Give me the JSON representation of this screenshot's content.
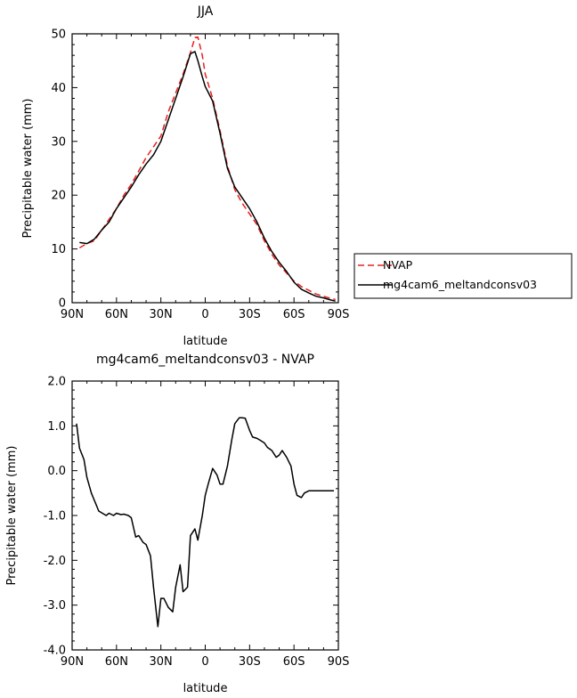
{
  "chart_data": [
    {
      "type": "line",
      "title": "JJA",
      "xlabel": "latitude",
      "ylabel": "Precipitable water (mm)",
      "xlim": [
        90,
        -90
      ],
      "ylim": [
        0,
        50
      ],
      "x_ticks": [
        90,
        60,
        30,
        0,
        -30,
        -60,
        -90
      ],
      "x_tick_labels": [
        "90N",
        "60N",
        "30N",
        "0",
        "30S",
        "60S",
        "90S"
      ],
      "y_ticks": [
        0,
        10,
        20,
        30,
        40,
        50
      ],
      "y_tick_labels": [
        "0",
        "10",
        "20",
        "30",
        "40",
        "50"
      ],
      "legend_placement": "right",
      "series": [
        {
          "name": "NVAP",
          "color": "#e8201e",
          "dash": "dashed",
          "x": [
            85,
            80,
            75,
            70,
            65,
            60,
            55,
            50,
            45,
            40,
            35,
            30,
            25,
            20,
            15,
            10,
            7,
            5,
            2,
            0,
            -5,
            -10,
            -15,
            -20,
            -25,
            -30,
            -35,
            -40,
            -45,
            -50,
            -55,
            -60,
            -65,
            -70,
            -75,
            -80,
            -85,
            -88
          ],
          "y": [
            10.2,
            11.0,
            11.5,
            13.5,
            15.5,
            17.5,
            20.0,
            22.0,
            24.5,
            27.0,
            29.0,
            31.0,
            35.5,
            39.0,
            42.5,
            46.5,
            49.3,
            49.4,
            46.0,
            42.5,
            38.0,
            32.0,
            25.5,
            21.0,
            18.5,
            16.5,
            14.5,
            11.5,
            9.0,
            7.0,
            5.5,
            4.0,
            3.0,
            2.3,
            1.6,
            1.2,
            0.8,
            0.6
          ]
        },
        {
          "name": "mg4cam6_meltandconsv03",
          "color": "#000000",
          "dash": "solid",
          "x": [
            85,
            80,
            75,
            70,
            65,
            60,
            55,
            50,
            45,
            40,
            35,
            30,
            25,
            20,
            15,
            10,
            7,
            5,
            2,
            0,
            -5,
            -10,
            -15,
            -20,
            -25,
            -30,
            -35,
            -40,
            -45,
            -50,
            -55,
            -60,
            -65,
            -70,
            -75,
            -80,
            -85,
            -88
          ],
          "y": [
            11.2,
            11.0,
            11.8,
            13.5,
            15.0,
            17.5,
            19.5,
            21.5,
            23.8,
            25.8,
            27.5,
            30.0,
            34.0,
            38.0,
            42.0,
            46.3,
            46.7,
            45.0,
            42.0,
            40.2,
            37.5,
            31.5,
            25.0,
            21.5,
            19.5,
            17.5,
            15.0,
            12.0,
            9.5,
            7.5,
            5.8,
            3.8,
            2.5,
            1.8,
            1.2,
            0.9,
            0.5,
            0.3
          ]
        }
      ]
    },
    {
      "type": "line",
      "title": "mg4cam6_meltandconsv03 - NVAP",
      "xlabel": "latitude",
      "ylabel": "Precipitable water (mm)",
      "xlim": [
        90,
        -90
      ],
      "ylim": [
        -4,
        2
      ],
      "x_ticks": [
        90,
        60,
        30,
        0,
        -30,
        -60,
        -90
      ],
      "x_tick_labels": [
        "90N",
        "60N",
        "30N",
        "0",
        "30S",
        "60S",
        "90S"
      ],
      "y_ticks": [
        -4,
        -3,
        -2,
        -1,
        0,
        1,
        2
      ],
      "y_tick_labels": [
        "-4.0",
        "-3.0",
        "-2.0",
        "-1.0",
        "0.0",
        "1.0",
        "2.0"
      ],
      "series": [
        {
          "color": "#000000",
          "dash": "solid",
          "x": [
            87,
            85,
            82,
            80,
            77,
            72,
            67,
            65,
            62,
            60,
            57,
            55,
            52,
            50,
            47,
            45,
            42,
            40,
            37,
            35,
            32,
            30,
            28,
            25,
            22,
            20,
            17,
            15,
            12,
            10,
            7,
            5,
            2,
            0,
            -2,
            -5,
            -8,
            -10,
            -12,
            -15,
            -18,
            -20,
            -23,
            -25,
            -27,
            -30,
            -32,
            -35,
            -37,
            -40,
            -42,
            -45,
            -48,
            -50,
            -52,
            -55,
            -58,
            -60,
            -62,
            -65,
            -67,
            -70,
            -72,
            -75,
            -77,
            -80,
            -83,
            -85,
            -87
          ],
          "y": [
            1.05,
            0.5,
            0.25,
            -0.15,
            -0.5,
            -0.9,
            -1.0,
            -0.95,
            -1.0,
            -0.95,
            -0.98,
            -0.97,
            -1.0,
            -1.05,
            -1.48,
            -1.45,
            -1.6,
            -1.65,
            -1.9,
            -2.6,
            -3.48,
            -2.85,
            -2.85,
            -3.05,
            -3.15,
            -2.6,
            -2.1,
            -2.7,
            -2.6,
            -1.45,
            -1.3,
            -1.55,
            -1.0,
            -0.55,
            -0.3,
            0.05,
            -0.1,
            -0.3,
            -0.3,
            0.1,
            0.7,
            1.05,
            1.18,
            1.18,
            1.17,
            0.9,
            0.75,
            0.72,
            0.68,
            0.62,
            0.52,
            0.45,
            0.3,
            0.35,
            0.45,
            0.3,
            0.1,
            -0.3,
            -0.55,
            -0.6,
            -0.5,
            -0.45,
            -0.45,
            -0.45,
            -0.45,
            -0.45,
            -0.45,
            -0.45,
            -0.45
          ]
        }
      ]
    }
  ]
}
